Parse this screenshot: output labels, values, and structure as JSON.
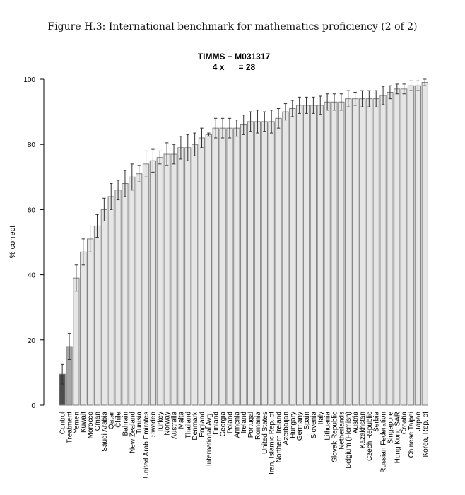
{
  "figure_title": "Figure H.3: International benchmark for mathematics proficiency (2 of 2)",
  "chart_data": {
    "type": "bar",
    "title": "TIMMS − M031317",
    "subtitle": "4 x __ = 28",
    "xlabel": "",
    "ylabel": "% correct",
    "ylim": [
      0,
      100
    ],
    "yticks": [
      0,
      20,
      40,
      60,
      80,
      100
    ],
    "grid": false,
    "error_bars": true,
    "colors": {
      "Control": "#4d4d4d",
      "Treatment": "#a6a6a6",
      "default": "#e6e6e6",
      "border": "#808080",
      "error_bar": "#333333"
    },
    "categories": [
      "Control",
      "Treatment",
      "Yemen",
      "Kuwait",
      "Morocco",
      "Oman",
      "Saudi Arabia",
      "Qatar",
      "Chile",
      "Bahrain",
      "New Zealand",
      "Tunisia",
      "United Arab Emirates",
      "Sweden",
      "Turkey",
      "Norway",
      "Australia",
      "Malta",
      "Thailand",
      "Denmark",
      "England",
      "International Avg.",
      "Finland",
      "Georgia",
      "Poland",
      "Armenia",
      "Ireland",
      "Portugal",
      "Romania",
      "United States",
      "Iran, Islamic Rep. of",
      "Northern Ireland",
      "Azerbaijan",
      "Hungary",
      "Germany",
      "Spain",
      "Slovenia",
      "Italy",
      "Lithuania",
      "Slovak Republic",
      "Netherlands",
      "Belgium (Flemish)",
      "Austria",
      "Kazakhstan",
      "Czech Republic",
      "Serbia",
      "Russian Federation",
      "Singapore",
      "Hong Kong SAR",
      "Croatia",
      "Chinese Taipei",
      "Japan",
      "Korea, Rep. of"
    ],
    "values": [
      9.5,
      18,
      39,
      47,
      51,
      55,
      60,
      64,
      66,
      68,
      70,
      71,
      74,
      75,
      76,
      77,
      77,
      79,
      79,
      80,
      82,
      83,
      85,
      85,
      85,
      85,
      86,
      87,
      87,
      87,
      87,
      88,
      90,
      91,
      92,
      92,
      92,
      92,
      93,
      93,
      93,
      94,
      94,
      94,
      94,
      94,
      95,
      96,
      97,
      97,
      98,
      98,
      99
    ],
    "error": [
      3,
      4,
      4,
      4,
      4,
      3.5,
      3.5,
      4,
      3,
      4,
      4,
      2.5,
      4,
      3.5,
      2,
      3.5,
      3,
      3.5,
      4,
      3.5,
      3,
      0.5,
      3,
      3,
      3,
      2.5,
      3,
      3,
      3.5,
      3,
      3.5,
      3,
      2.5,
      2.5,
      2.5,
      2.5,
      2.5,
      2.8,
      2.5,
      2.5,
      2.5,
      2.5,
      2,
      2.5,
      2.5,
      2.5,
      2.8,
      2,
      1.5,
      1.5,
      1.5,
      1.5,
      1
    ]
  }
}
